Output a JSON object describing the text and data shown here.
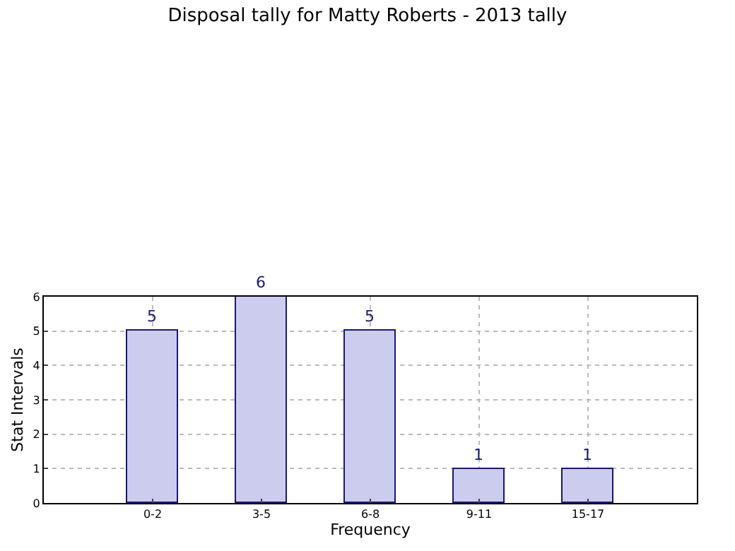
{
  "chart_data": {
    "type": "bar",
    "title": "Disposal tally for Matty Roberts - 2013 tally",
    "xlabel": "Frequency",
    "ylabel": "Stat Intervals",
    "categories": [
      "0-2",
      "3-5",
      "6-8",
      "9-11",
      "15-17"
    ],
    "values": [
      5,
      6,
      5,
      1,
      1
    ],
    "color": "#ccccee",
    "ylim": [
      0,
      6
    ],
    "yticks": [
      0,
      1,
      2,
      3,
      4,
      5,
      6
    ],
    "grid": true,
    "data_labels": true
  }
}
